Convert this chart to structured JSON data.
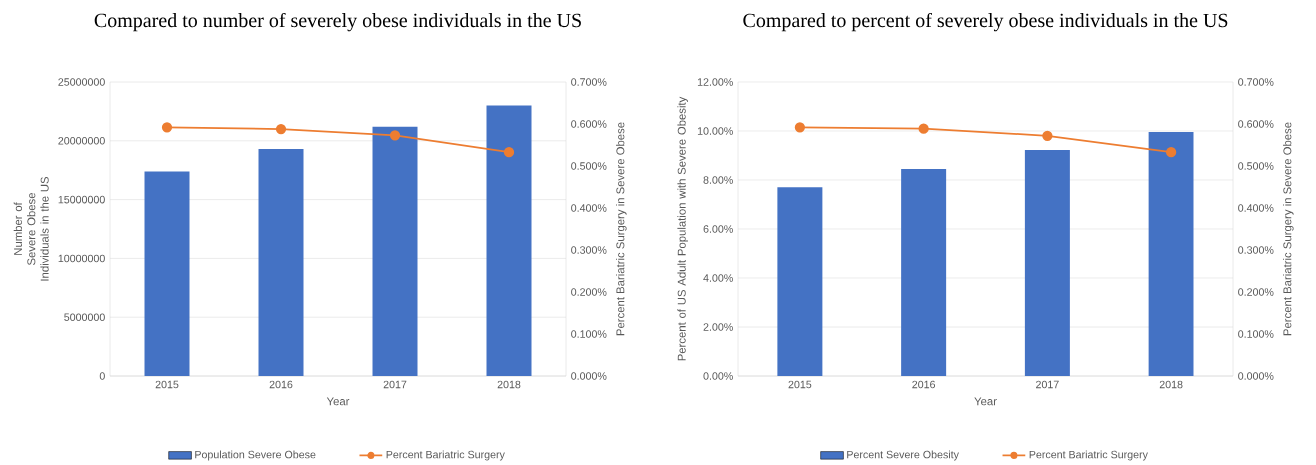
{
  "chart_data": [
    {
      "type": "bar",
      "title": "Compared to number of severely obese individuals in the US",
      "xlabel": "Year",
      "ylabel": "Number of Severe Obese Individuals in the US",
      "y2label": "Percent Bariatric Surgery in Severe Obese",
      "categories": [
        "2015",
        "2016",
        "2017",
        "2018"
      ],
      "series": [
        {
          "name": "Population Severe Obese",
          "color": "#4472c4",
          "values": [
            17400000,
            19300000,
            21200000,
            23000000
          ]
        },
        {
          "name": "Percent Bariatric Surgery",
          "type": "line",
          "axis": "y2",
          "color": "#ed7d31",
          "values": [
            0.592,
            0.588,
            0.573,
            0.533
          ]
        }
      ],
      "ylim": [
        0,
        25000000
      ],
      "yticks": [
        0,
        5000000,
        10000000,
        15000000,
        20000000,
        25000000
      ],
      "y2lim": [
        0,
        0.7
      ],
      "y2ticks": [
        {
          "value": 0,
          "label": "0.000%"
        },
        {
          "value": 0.1,
          "label": "0.100%"
        },
        {
          "value": 0.2,
          "label": "0.200%"
        },
        {
          "value": 0.3,
          "label": "0.300%"
        },
        {
          "value": 0.4,
          "label": "0.400%"
        },
        {
          "value": 0.5,
          "label": "0.500%"
        },
        {
          "value": 0.6,
          "label": "0.600%"
        },
        {
          "value": 0.7,
          "label": "0.700%"
        }
      ],
      "grid": "y",
      "legend": "bottom",
      "marker": "circle"
    },
    {
      "type": "bar",
      "title": "Compared to percent of severely obese individuals in the US",
      "xlabel": "Year",
      "ylabel": "Percent of US Adult Population with Severe Obesity",
      "y2label": "Percent Bariatric Surgery in Severe Obese",
      "categories": [
        "2015",
        "2016",
        "2017",
        "2018"
      ],
      "series": [
        {
          "name": "Percent Severe Obesity",
          "color": "#4472c4",
          "values": [
            7.7,
            8.45,
            9.22,
            9.96
          ]
        },
        {
          "name": "Percent Bariatric Surgery",
          "type": "line",
          "axis": "y2",
          "color": "#ed7d31",
          "values": [
            0.592,
            0.589,
            0.572,
            0.533
          ]
        }
      ],
      "ylim": [
        0,
        12
      ],
      "yticks": [
        {
          "value": 0,
          "label": "0.00%"
        },
        {
          "value": 2,
          "label": "2.00%"
        },
        {
          "value": 4,
          "label": "4.00%"
        },
        {
          "value": 6,
          "label": "6.00%"
        },
        {
          "value": 8,
          "label": "8.00%"
        },
        {
          "value": 10,
          "label": "10.00%"
        },
        {
          "value": 12,
          "label": "12.00%"
        }
      ],
      "y2lim": [
        0,
        0.7
      ],
      "y2ticks": [
        {
          "value": 0,
          "label": "0.000%"
        },
        {
          "value": 0.1,
          "label": "0.100%"
        },
        {
          "value": 0.2,
          "label": "0.200%"
        },
        {
          "value": 0.3,
          "label": "0.300%"
        },
        {
          "value": 0.4,
          "label": "0.400%"
        },
        {
          "value": 0.5,
          "label": "0.500%"
        },
        {
          "value": 0.6,
          "label": "0.600%"
        },
        {
          "value": 0.7,
          "label": "0.700%"
        }
      ],
      "grid": "y",
      "legend": "bottom",
      "marker": "circle"
    }
  ]
}
